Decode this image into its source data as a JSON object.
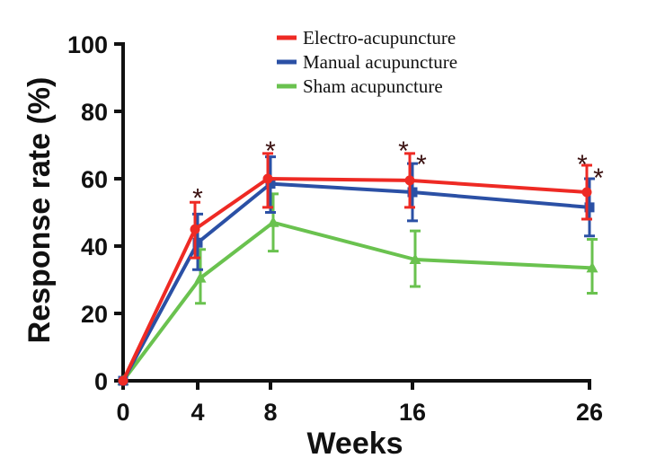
{
  "chart_data": {
    "type": "line",
    "title": "",
    "xlabel": "Weeks",
    "ylabel": "Response rate (%)",
    "x": [
      0,
      4,
      8,
      16,
      26
    ],
    "x_ticks": [
      "0",
      "4",
      "8",
      "16",
      "26"
    ],
    "y_ticks": [
      "0",
      "20",
      "40",
      "60",
      "80",
      "100"
    ],
    "xlim": [
      0,
      26
    ],
    "ylim": [
      0,
      100
    ],
    "grid": false,
    "legend_position": "top-right",
    "series": [
      {
        "name": "Electro-acupuncture",
        "color": "#ee2a24",
        "marker": "circle",
        "values": [
          0,
          45,
          60,
          59.5,
          56
        ],
        "err_low": [
          0,
          36.5,
          51.5,
          51.5,
          48
        ],
        "err_high": [
          0,
          53,
          67.5,
          67.5,
          64
        ]
      },
      {
        "name": "Manual acupuncture",
        "color": "#2b50a5",
        "marker": "square",
        "values": [
          0,
          41,
          58.5,
          56,
          51.5
        ],
        "err_low": [
          0,
          33,
          50,
          47.5,
          43
        ],
        "err_high": [
          0,
          49.5,
          66.5,
          64.5,
          60
        ]
      },
      {
        "name": "Sham acupuncture",
        "color": "#6ac24f",
        "marker": "triangle",
        "values": [
          0,
          30.5,
          47,
          36,
          33.5
        ],
        "err_low": [
          0,
          23,
          38.5,
          28,
          26
        ],
        "err_high": [
          0,
          39,
          55.5,
          44.5,
          42
        ]
      }
    ],
    "annotations": [
      {
        "text": "*",
        "x": 4,
        "y": 57
      },
      {
        "text": "*",
        "x": 8,
        "y": 71
      },
      {
        "text": "*",
        "x": 16,
        "y": 71
      },
      {
        "text": "*",
        "x": 16,
        "y": 67
      },
      {
        "text": "*",
        "x": 26,
        "y": 67
      },
      {
        "text": "*",
        "x": 26,
        "y": 63
      }
    ]
  }
}
